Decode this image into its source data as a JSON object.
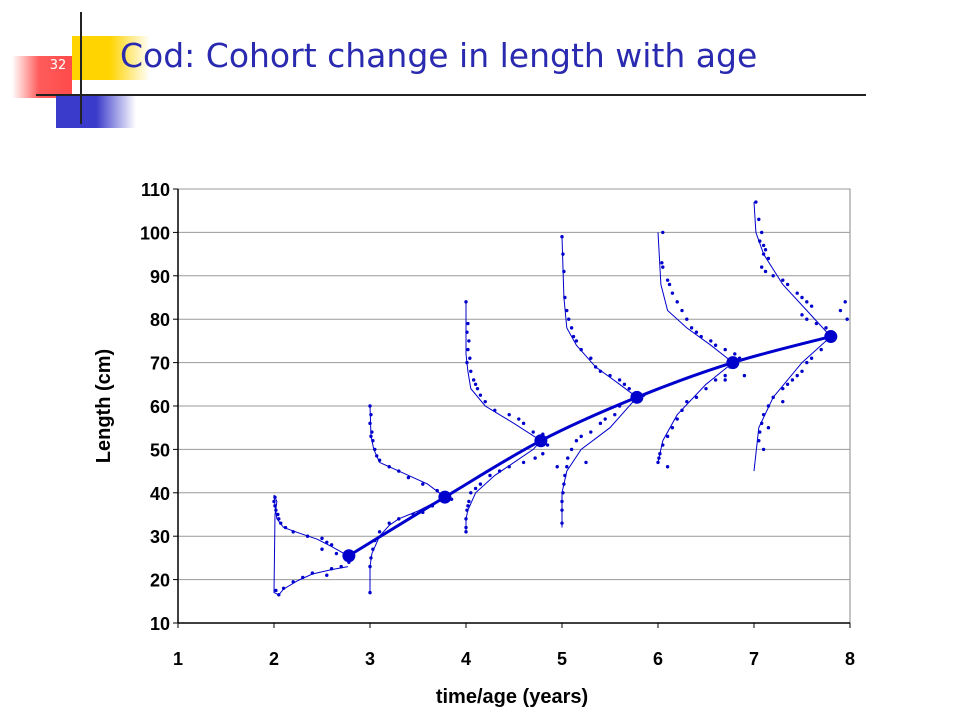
{
  "slide": {
    "number": "32",
    "title": "Cod: Cohort change in length with age"
  },
  "colors": {
    "title": "#2a2ab0",
    "series": "#0000cc",
    "accent_yellow": "#ffd400",
    "accent_red": "#ff4a4a",
    "accent_blue": "#3a3acb"
  },
  "chart_data": {
    "type": "scatter",
    "xlabel": "time/age (years)",
    "ylabel": "Length (cm)",
    "xlim": [
      1,
      8
    ],
    "ylim": [
      10,
      110
    ],
    "xticks": [
      "1",
      "2",
      "3",
      "4",
      "5",
      "6",
      "7",
      "8"
    ],
    "yticks": [
      "10",
      "20",
      "30",
      "40",
      "50",
      "60",
      "70",
      "80",
      "90",
      "100",
      "110"
    ],
    "grid": true,
    "growth_curve": {
      "x": [
        2.78,
        3.78,
        4.78,
        5.78,
        6.78,
        7.8
      ],
      "y": [
        25.5,
        39,
        52,
        62,
        70,
        76
      ]
    },
    "length_distributions": [
      {
        "curve": [
          [
            2.77,
            23
          ],
          [
            2.6,
            22.3
          ],
          [
            2.4,
            21.3
          ],
          [
            2.25,
            19.8
          ],
          [
            2.1,
            17.8
          ],
          [
            2.05,
            16.5
          ],
          [
            2.0,
            17
          ],
          [
            2.01,
            35
          ],
          [
            2.03,
            38
          ],
          [
            2.0,
            39.5
          ],
          [
            2.01,
            37
          ],
          [
            2.03,
            34
          ],
          [
            2.1,
            32
          ],
          [
            2.25,
            30.8
          ],
          [
            2.45,
            29.3
          ],
          [
            2.6,
            27.6
          ],
          [
            2.77,
            25.5
          ]
        ],
        "points": [
          [
            2.01,
            39
          ],
          [
            2.0,
            38
          ],
          [
            2.01,
            37
          ],
          [
            2.02,
            36
          ],
          [
            2.04,
            35
          ],
          [
            2.05,
            34
          ],
          [
            2.07,
            33
          ],
          [
            2.12,
            32
          ],
          [
            2.2,
            31
          ],
          [
            2.35,
            30
          ],
          [
            2.5,
            29.5
          ],
          [
            2.55,
            28.6
          ],
          [
            2.6,
            28
          ],
          [
            2.5,
            27
          ],
          [
            2.65,
            26
          ],
          [
            2.78,
            24
          ],
          [
            2.7,
            23
          ],
          [
            2.6,
            22.5
          ],
          [
            2.4,
            21.5
          ],
          [
            2.3,
            20.5
          ],
          [
            2.2,
            19.5
          ],
          [
            2.1,
            18
          ],
          [
            2.02,
            17.5
          ],
          [
            2.05,
            16.5
          ],
          [
            2.55,
            21
          ]
        ]
      },
      {
        "curve": [
          [
            3.0,
            17
          ],
          [
            3.0,
            23
          ],
          [
            3.02,
            26
          ],
          [
            3.1,
            30
          ],
          [
            3.2,
            32.5
          ],
          [
            3.3,
            34
          ],
          [
            3.5,
            35.8
          ],
          [
            3.65,
            37.5
          ],
          [
            3.78,
            39
          ],
          [
            3.6,
            42
          ],
          [
            3.3,
            45
          ],
          [
            3.1,
            47
          ],
          [
            3.04,
            50
          ],
          [
            3.01,
            53
          ],
          [
            3.0,
            60
          ]
        ],
        "points": [
          [
            3.0,
            60
          ],
          [
            3.01,
            58
          ],
          [
            3.0,
            56
          ],
          [
            3.02,
            54
          ],
          [
            3.01,
            53
          ],
          [
            3.03,
            52
          ],
          [
            3.05,
            50
          ],
          [
            3.07,
            48.5
          ],
          [
            3.1,
            47.5
          ],
          [
            3.2,
            46
          ],
          [
            3.3,
            45
          ],
          [
            3.4,
            43.5
          ],
          [
            3.55,
            42
          ],
          [
            3.7,
            40.5
          ],
          [
            3.85,
            38.5
          ],
          [
            3.65,
            37
          ],
          [
            3.55,
            35.5
          ],
          [
            3.45,
            35
          ],
          [
            3.3,
            34
          ],
          [
            3.2,
            33
          ],
          [
            3.1,
            31
          ],
          [
            3.05,
            29
          ],
          [
            3.03,
            27
          ],
          [
            3.01,
            25
          ],
          [
            3.0,
            23
          ],
          [
            3.0,
            17
          ]
        ]
      },
      {
        "curve": [
          [
            4.0,
            31
          ],
          [
            4.0,
            34
          ],
          [
            4.02,
            36
          ],
          [
            4.1,
            40
          ],
          [
            4.3,
            44
          ],
          [
            4.5,
            47
          ],
          [
            4.7,
            50
          ],
          [
            4.78,
            52
          ],
          [
            4.5,
            56
          ],
          [
            4.2,
            60
          ],
          [
            4.05,
            64
          ],
          [
            4.02,
            68
          ],
          [
            4.0,
            72
          ],
          [
            4.0,
            84
          ]
        ],
        "points": [
          [
            4.0,
            84
          ],
          [
            4.02,
            79
          ],
          [
            4.01,
            77
          ],
          [
            4.03,
            75
          ],
          [
            4.02,
            73
          ],
          [
            4.04,
            71
          ],
          [
            4.01,
            70
          ],
          [
            4.05,
            68
          ],
          [
            4.08,
            66
          ],
          [
            4.1,
            65
          ],
          [
            4.12,
            64
          ],
          [
            4.15,
            62.5
          ],
          [
            4.2,
            61
          ],
          [
            4.3,
            59
          ],
          [
            4.45,
            58
          ],
          [
            4.55,
            57
          ],
          [
            4.6,
            56
          ],
          [
            4.7,
            54
          ],
          [
            4.8,
            53.5
          ],
          [
            4.85,
            51
          ],
          [
            4.8,
            49
          ],
          [
            4.72,
            48
          ],
          [
            4.6,
            47
          ],
          [
            4.45,
            46
          ],
          [
            4.35,
            45
          ],
          [
            4.25,
            44
          ],
          [
            4.15,
            42
          ],
          [
            4.1,
            41
          ],
          [
            4.05,
            40
          ],
          [
            4.03,
            38
          ],
          [
            4.02,
            37
          ],
          [
            4.01,
            36
          ],
          [
            4.0,
            34
          ],
          [
            4.0,
            32
          ],
          [
            4.0,
            31
          ]
        ]
      },
      {
        "curve": [
          [
            5.0,
            32
          ],
          [
            5.0,
            40
          ],
          [
            5.05,
            45
          ],
          [
            5.2,
            50
          ],
          [
            5.5,
            55
          ],
          [
            5.78,
            62
          ],
          [
            5.6,
            65
          ],
          [
            5.35,
            69
          ],
          [
            5.15,
            74
          ],
          [
            5.05,
            78
          ],
          [
            5.02,
            85
          ],
          [
            5.0,
            99
          ]
        ],
        "points": [
          [
            5.0,
            99
          ],
          [
            5.01,
            95
          ],
          [
            5.02,
            91
          ],
          [
            5.03,
            85
          ],
          [
            5.05,
            82
          ],
          [
            5.07,
            80
          ],
          [
            5.1,
            78
          ],
          [
            5.12,
            76
          ],
          [
            5.15,
            75
          ],
          [
            5.2,
            73
          ],
          [
            5.3,
            71
          ],
          [
            5.35,
            69
          ],
          [
            5.4,
            68
          ],
          [
            5.5,
            67
          ],
          [
            5.6,
            66
          ],
          [
            5.65,
            65
          ],
          [
            5.7,
            64
          ],
          [
            5.75,
            62
          ],
          [
            5.85,
            62.5
          ],
          [
            5.6,
            60
          ],
          [
            5.55,
            58
          ],
          [
            5.45,
            57
          ],
          [
            5.4,
            56
          ],
          [
            5.3,
            54
          ],
          [
            5.2,
            53
          ],
          [
            5.15,
            52
          ],
          [
            5.1,
            50
          ],
          [
            5.06,
            48
          ],
          [
            5.05,
            46
          ],
          [
            5.03,
            44
          ],
          [
            5.02,
            42
          ],
          [
            5.01,
            40
          ],
          [
            5.0,
            38
          ],
          [
            5.0,
            36
          ],
          [
            5.0,
            33
          ],
          [
            4.95,
            46
          ],
          [
            5.25,
            47
          ]
        ]
      },
      {
        "curve": [
          [
            6.0,
            47
          ],
          [
            6.05,
            52
          ],
          [
            6.2,
            58
          ],
          [
            6.5,
            65
          ],
          [
            6.78,
            70
          ],
          [
            6.55,
            74
          ],
          [
            6.3,
            78
          ],
          [
            6.1,
            82
          ],
          [
            6.03,
            88
          ],
          [
            6.0,
            100
          ]
        ],
        "points": [
          [
            6.05,
            100
          ],
          [
            6.04,
            93
          ],
          [
            6.05,
            92
          ],
          [
            6.1,
            89
          ],
          [
            6.12,
            88
          ],
          [
            6.15,
            86
          ],
          [
            6.2,
            84
          ],
          [
            6.25,
            82
          ],
          [
            6.3,
            80
          ],
          [
            6.35,
            78
          ],
          [
            6.4,
            77
          ],
          [
            6.45,
            76
          ],
          [
            6.55,
            75
          ],
          [
            6.6,
            74
          ],
          [
            6.7,
            73
          ],
          [
            6.8,
            72
          ],
          [
            6.85,
            71
          ],
          [
            6.75,
            69
          ],
          [
            6.7,
            67
          ],
          [
            6.6,
            66
          ],
          [
            6.5,
            64
          ],
          [
            6.4,
            62
          ],
          [
            6.3,
            61
          ],
          [
            6.25,
            59
          ],
          [
            6.2,
            57
          ],
          [
            6.15,
            55
          ],
          [
            6.1,
            53
          ],
          [
            6.05,
            51
          ],
          [
            6.02,
            49
          ],
          [
            6.01,
            48
          ],
          [
            6.0,
            47
          ],
          [
            6.1,
            46
          ],
          [
            6.7,
            66
          ],
          [
            6.9,
            67
          ]
        ]
      },
      {
        "curve": [
          [
            7.0,
            45
          ],
          [
            7.05,
            55
          ],
          [
            7.2,
            62
          ],
          [
            7.5,
            70
          ],
          [
            7.8,
            76
          ],
          [
            7.55,
            82
          ],
          [
            7.3,
            88
          ],
          [
            7.1,
            95
          ],
          [
            7.02,
            100
          ],
          [
            7.0,
            107
          ]
        ],
        "points": [
          [
            7.02,
            107
          ],
          [
            7.05,
            103
          ],
          [
            7.08,
            100
          ],
          [
            7.06,
            98
          ],
          [
            7.1,
            97
          ],
          [
            7.12,
            96
          ],
          [
            7.1,
            95
          ],
          [
            7.15,
            94
          ],
          [
            7.08,
            92
          ],
          [
            7.12,
            91
          ],
          [
            7.2,
            90
          ],
          [
            7.3,
            89
          ],
          [
            7.35,
            88
          ],
          [
            7.45,
            86
          ],
          [
            7.5,
            85
          ],
          [
            7.55,
            84
          ],
          [
            7.6,
            83
          ],
          [
            7.5,
            81
          ],
          [
            7.55,
            80
          ],
          [
            7.65,
            79
          ],
          [
            7.75,
            78
          ],
          [
            7.8,
            77
          ],
          [
            7.95,
            84
          ],
          [
            7.9,
            82
          ],
          [
            7.97,
            80
          ],
          [
            7.7,
            73
          ],
          [
            7.6,
            71
          ],
          [
            7.55,
            70
          ],
          [
            7.5,
            68
          ],
          [
            7.45,
            67
          ],
          [
            7.4,
            66
          ],
          [
            7.35,
            65
          ],
          [
            7.3,
            64
          ],
          [
            7.2,
            62
          ],
          [
            7.15,
            60
          ],
          [
            7.1,
            58
          ],
          [
            7.08,
            56
          ],
          [
            7.06,
            54
          ],
          [
            7.05,
            52
          ],
          [
            7.1,
            50
          ],
          [
            7.3,
            61
          ],
          [
            7.15,
            55
          ]
        ]
      }
    ]
  }
}
